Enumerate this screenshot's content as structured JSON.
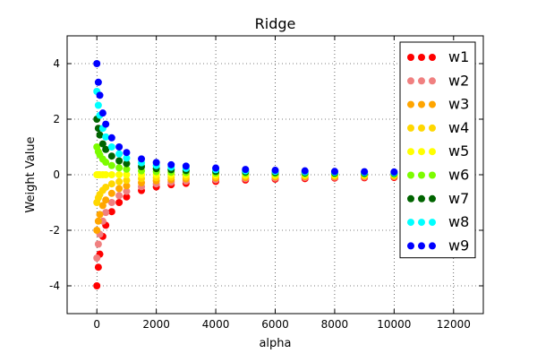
{
  "chart_data": {
    "type": "scatter",
    "title": "Ridge",
    "xlabel": "alpha",
    "ylabel": "Weight Value",
    "xlim": [
      -1000,
      13000
    ],
    "ylim": [
      -5,
      5
    ],
    "xticks": [
      0,
      2000,
      4000,
      6000,
      8000,
      10000,
      12000
    ],
    "xtick_labels": [
      "0",
      "2000",
      "4000",
      "6000",
      "8000",
      "10000",
      "12000"
    ],
    "yticks": [
      -4,
      -2,
      0,
      2,
      4
    ],
    "ytick_labels": [
      "-4",
      "-2",
      "0",
      "2",
      "4"
    ],
    "grid": true,
    "legend_position": "upper right",
    "x": [
      0,
      50,
      100,
      200,
      300,
      500,
      750,
      1000,
      1500,
      2000,
      2500,
      3000,
      4000,
      5000,
      6000,
      7000,
      8000,
      9000,
      10000
    ],
    "series": [
      {
        "name": "w1",
        "color": "#ff0000",
        "values": [
          -4.0,
          -3.33,
          -2.86,
          -2.22,
          -1.82,
          -1.33,
          -1.0,
          -0.8,
          -0.57,
          -0.44,
          -0.36,
          -0.31,
          -0.24,
          -0.19,
          -0.16,
          -0.14,
          -0.12,
          -0.11,
          -0.1
        ]
      },
      {
        "name": "w2",
        "color": "#f08080",
        "values": [
          -3.0,
          -2.5,
          -2.14,
          -1.67,
          -1.36,
          -1.0,
          -0.75,
          -0.6,
          -0.43,
          -0.33,
          -0.27,
          -0.23,
          -0.18,
          -0.14,
          -0.12,
          -0.1,
          -0.09,
          -0.08,
          -0.07
        ]
      },
      {
        "name": "w3",
        "color": "#ffa500",
        "values": [
          -2.0,
          -1.67,
          -1.43,
          -1.11,
          -0.91,
          -0.67,
          -0.5,
          -0.4,
          -0.29,
          -0.22,
          -0.18,
          -0.15,
          -0.12,
          -0.1,
          -0.08,
          -0.07,
          -0.06,
          -0.05,
          -0.05
        ]
      },
      {
        "name": "w4",
        "color": "#ffd700",
        "values": [
          -1.0,
          -0.83,
          -0.71,
          -0.56,
          -0.45,
          -0.33,
          -0.25,
          -0.2,
          -0.14,
          -0.11,
          -0.09,
          -0.08,
          -0.06,
          -0.05,
          -0.04,
          -0.03,
          -0.03,
          -0.03,
          -0.02
        ]
      },
      {
        "name": "w5",
        "color": "#ffff00",
        "values": [
          0,
          0,
          0,
          0,
          0,
          0,
          0,
          0,
          0,
          0,
          0,
          0,
          0,
          0,
          0,
          0,
          0,
          0,
          0
        ]
      },
      {
        "name": "w6",
        "color": "#7cfc00",
        "values": [
          1.0,
          0.83,
          0.71,
          0.56,
          0.45,
          0.33,
          0.25,
          0.2,
          0.14,
          0.11,
          0.09,
          0.08,
          0.06,
          0.05,
          0.04,
          0.03,
          0.03,
          0.03,
          0.02
        ]
      },
      {
        "name": "w7",
        "color": "#006400",
        "values": [
          2.0,
          1.67,
          1.43,
          1.11,
          0.91,
          0.67,
          0.5,
          0.4,
          0.29,
          0.22,
          0.18,
          0.15,
          0.12,
          0.1,
          0.08,
          0.07,
          0.06,
          0.05,
          0.05
        ]
      },
      {
        "name": "w8",
        "color": "#00ffff",
        "values": [
          3.0,
          2.5,
          2.14,
          1.67,
          1.36,
          1.0,
          0.75,
          0.6,
          0.43,
          0.33,
          0.27,
          0.23,
          0.18,
          0.14,
          0.12,
          0.1,
          0.09,
          0.08,
          0.07
        ]
      },
      {
        "name": "w9",
        "color": "#0000ff",
        "values": [
          4.0,
          3.33,
          2.86,
          2.22,
          1.82,
          1.33,
          1.0,
          0.8,
          0.57,
          0.44,
          0.36,
          0.31,
          0.24,
          0.19,
          0.16,
          0.14,
          0.12,
          0.11,
          0.1
        ]
      }
    ]
  }
}
